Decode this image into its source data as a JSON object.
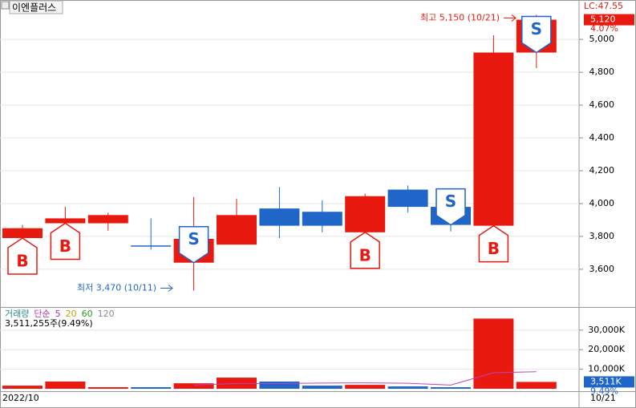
{
  "chart_data": {
    "type": "candlestick",
    "title": "이엔플러스",
    "up_color": "#e8190f",
    "down_color": "#1f66c8",
    "open": [
      3790,
      3880,
      3880,
      3745,
      3640,
      3750,
      3970,
      3950,
      3825,
      4085,
      3980,
      3865,
      4920
    ],
    "high": [
      3870,
      3980,
      3945,
      3910,
      4040,
      4030,
      4100,
      4020,
      4060,
      4110,
      4070,
      5025,
      5150
    ],
    "low": [
      3600,
      3860,
      3835,
      3720,
      3470,
      3750,
      3790,
      3825,
      3785,
      3945,
      3830,
      3750,
      4825
    ],
    "close": [
      3850,
      3910,
      3930,
      3740,
      3785,
      3930,
      3865,
      3865,
      4045,
      3980,
      3870,
      4920,
      5120
    ],
    "signals": [
      "B",
      "B",
      null,
      null,
      "S",
      null,
      null,
      null,
      "B",
      null,
      "S",
      "B",
      "S"
    ],
    "ylim": [
      3370,
      5240
    ],
    "yticks": [
      {
        "value": 3600,
        "label": "3,600"
      },
      {
        "value": 3800,
        "label": "3,800"
      },
      {
        "value": 4000,
        "label": "4,000"
      },
      {
        "value": 4200,
        "label": "4,200"
      },
      {
        "value": 4400,
        "label": "4,400"
      },
      {
        "value": 4600,
        "label": "4,600"
      },
      {
        "value": 4800,
        "label": "4,800"
      },
      {
        "value": 5000,
        "label": "5,000"
      }
    ],
    "last_price": {
      "value": 5120,
      "label": "5,120"
    },
    "change_label": "4.07%",
    "lc_label": "LC:47.55",
    "high_annotation": "최고 5,150 (10/21)",
    "low_annotation": "최저 3,470 (10/11)",
    "x_labels": [
      "2022/10",
      "10/21"
    ],
    "volume": {
      "legend": [
        "거래량",
        "단순",
        "5",
        "20",
        "60",
        "120"
      ],
      "legend_colors": [
        "#2a8a8a",
        "#b030b0",
        "#b030b0",
        "#c8a000",
        "#2a9a2a",
        "#888888"
      ],
      "info": "3,511,255주(9.49%)",
      "values": [
        1600,
        3700,
        800,
        800,
        2800,
        5700,
        3700,
        1600,
        2000,
        1200,
        800,
        35900,
        3511
      ],
      "ma5": [
        null,
        null,
        null,
        null,
        1900,
        2700,
        2700,
        2900,
        3000,
        2800,
        1900,
        8200,
        8700
      ],
      "ma5_color": "#c040c0",
      "ylim": [
        0,
        41000
      ],
      "yticks": [
        {
          "value": 10000,
          "label": "10,000K"
        },
        {
          "value": 20000,
          "label": "20,000K"
        },
        {
          "value": 30000,
          "label": "30,000K"
        }
      ],
      "last_label": {
        "value": 3511,
        "label": "3,511K"
      },
      "pct_label": "9.49%"
    }
  }
}
